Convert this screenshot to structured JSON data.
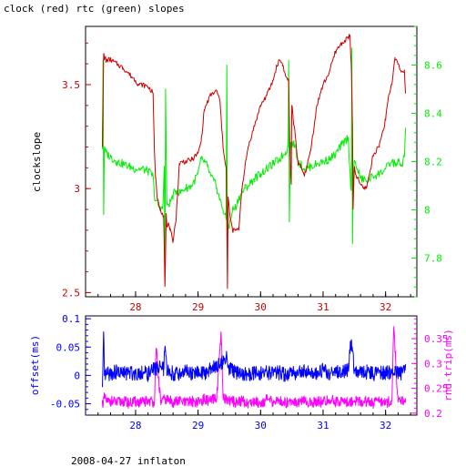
{
  "title": "clock (red) rtc (green) slopes",
  "footer": "2008-04-27 inflaton",
  "colors": {
    "clock": "#cc0000",
    "rtc": "#00ee00",
    "offset": "#0000ff",
    "rnd_trip": "#ff00ff",
    "frame": "#000000"
  },
  "chart_data": [
    {
      "type": "line",
      "title": "clock (red) rtc (green) slopes",
      "xlabel": "",
      "xlim": [
        27.2,
        32.5
      ],
      "xticks": [
        "28",
        "29",
        "30",
        "31",
        "32"
      ],
      "ylabel_left": "clockslope",
      "ylim_left": [
        2.48,
        3.78
      ],
      "yticks_left": [
        "2.5",
        "3",
        "3.5"
      ],
      "ylim_right": [
        7.64,
        8.76
      ],
      "yticks_right": [
        "7.8",
        "8",
        "8.2",
        "8.4",
        "8.6"
      ],
      "grid": false,
      "series": [
        {
          "name": "clock",
          "axis": "left",
          "color": "#cc0000",
          "x": [
            27.47,
            27.49,
            27.5,
            27.52,
            27.53,
            27.55,
            27.6,
            27.7,
            27.8,
            27.9,
            28.0,
            28.05,
            28.1,
            28.2,
            28.28,
            28.3,
            28.32,
            28.35,
            28.4,
            28.45,
            28.47,
            28.49,
            28.5,
            28.52,
            28.55,
            28.6,
            28.62,
            28.65,
            28.7,
            28.75,
            28.8,
            28.9,
            29.0,
            29.05,
            29.1,
            29.2,
            29.3,
            29.35,
            29.4,
            29.45,
            29.47,
            29.48,
            29.5,
            29.52,
            29.55,
            29.6,
            29.65,
            29.7,
            29.75,
            29.8,
            29.9,
            30.0,
            30.1,
            30.2,
            30.25,
            30.3,
            30.35,
            30.4,
            30.45,
            30.47,
            30.49,
            30.5,
            30.52,
            30.55,
            30.6,
            30.65,
            30.7,
            30.8,
            30.9,
            31.0,
            31.1,
            31.2,
            31.3,
            31.35,
            31.4,
            31.43,
            31.45,
            31.47,
            31.48,
            31.5,
            31.52,
            31.55,
            31.6,
            31.65,
            31.7,
            31.75,
            31.8,
            31.9,
            32.0,
            32.05,
            32.1,
            32.15,
            32.2,
            32.25,
            32.3,
            32.32
          ],
          "values": [
            3.21,
            3.65,
            3.62,
            3.63,
            3.61,
            3.62,
            3.62,
            3.6,
            3.58,
            3.55,
            3.52,
            3.5,
            3.5,
            3.49,
            3.46,
            3.2,
            3.05,
            2.95,
            2.9,
            2.87,
            2.53,
            2.87,
            2.82,
            2.83,
            2.8,
            2.75,
            2.8,
            2.86,
            3.12,
            3.13,
            3.13,
            3.14,
            3.17,
            3.23,
            3.38,
            3.45,
            3.47,
            3.42,
            3.2,
            3.1,
            2.52,
            2.96,
            2.9,
            2.85,
            2.8,
            2.8,
            2.8,
            3.0,
            3.1,
            3.2,
            3.3,
            3.4,
            3.45,
            3.52,
            3.58,
            3.62,
            3.6,
            3.54,
            3.52,
            3.17,
            3.02,
            3.4,
            3.34,
            3.27,
            3.12,
            3.1,
            3.06,
            3.18,
            3.4,
            3.5,
            3.56,
            3.66,
            3.7,
            3.71,
            3.73,
            3.73,
            3.6,
            3.3,
            2.9,
            3.1,
            3.07,
            3.05,
            3.02,
            3.0,
            3.01,
            3.08,
            3.16,
            3.21,
            3.33,
            3.45,
            3.5,
            3.63,
            3.6,
            3.56,
            3.57,
            3.46
          ]
        },
        {
          "name": "rtc",
          "axis": "right",
          "color": "#00ee00",
          "x": [
            27.47,
            27.48,
            27.49,
            27.5,
            27.52,
            27.55,
            27.6,
            27.7,
            27.8,
            27.9,
            28.0,
            28.1,
            28.2,
            28.28,
            28.3,
            28.33,
            28.36,
            28.4,
            28.44,
            28.46,
            28.47,
            28.48,
            28.5,
            28.55,
            28.6,
            28.65,
            28.7,
            28.75,
            28.8,
            28.9,
            29.0,
            29.05,
            29.1,
            29.15,
            29.2,
            29.25,
            29.3,
            29.35,
            29.4,
            29.45,
            29.46,
            29.47,
            29.48,
            29.5,
            29.55,
            29.6,
            29.65,
            29.7,
            29.75,
            29.8,
            29.9,
            30.0,
            30.1,
            30.2,
            30.3,
            30.4,
            30.44,
            30.45,
            30.46,
            30.48,
            30.5,
            30.55,
            30.6,
            30.7,
            30.8,
            30.9,
            31.0,
            31.1,
            31.2,
            31.3,
            31.4,
            31.45,
            31.46,
            31.47,
            31.48,
            31.5,
            31.55,
            31.6,
            31.7,
            31.8,
            31.9,
            32.0,
            32.1,
            32.15,
            32.2,
            32.25,
            32.3,
            32.32
          ],
          "values": [
            8.26,
            8.62,
            7.98,
            8.25,
            8.24,
            8.23,
            8.22,
            8.2,
            8.19,
            8.18,
            8.17,
            8.17,
            8.16,
            8.14,
            8.06,
            8.04,
            8.02,
            8.0,
            8.03,
            8.18,
            7.7,
            8.5,
            8.02,
            8.03,
            8.06,
            8.08,
            8.07,
            8.08,
            8.09,
            8.1,
            8.15,
            8.21,
            8.2,
            8.18,
            8.14,
            8.12,
            8.09,
            8.04,
            8.0,
            7.96,
            8.6,
            7.85,
            7.95,
            7.93,
            8.0,
            8.01,
            8.05,
            8.07,
            8.09,
            8.1,
            8.13,
            8.15,
            8.17,
            8.19,
            8.21,
            8.24,
            8.26,
            8.62,
            7.95,
            8.28,
            8.27,
            8.27,
            8.2,
            8.17,
            8.18,
            8.19,
            8.2,
            8.21,
            8.23,
            8.27,
            8.3,
            8.08,
            8.67,
            7.86,
            8.1,
            8.2,
            8.17,
            8.13,
            8.12,
            8.14,
            8.15,
            8.17,
            8.2,
            8.19,
            8.2,
            8.18,
            8.22,
            8.34
          ]
        }
      ]
    },
    {
      "type": "line",
      "xlabel": "",
      "xlim": [
        27.2,
        32.5
      ],
      "xticks": [
        "28",
        "29",
        "30",
        "31",
        "32"
      ],
      "ylabel_left": "offset(ms)",
      "ylim_left": [
        -0.07,
        0.105
      ],
      "yticks_left": [
        "-0.05",
        "0",
        "0.05",
        "0.1"
      ],
      "ylabel_right": "rnd-trip(ms)",
      "ylim_right": [
        0.196,
        0.396
      ],
      "yticks_right": [
        "0.2",
        "0.25",
        "0.3",
        "0.35"
      ],
      "grid": false,
      "series": [
        {
          "name": "offset",
          "axis": "left",
          "color": "#0000ff",
          "x": [
            27.47,
            27.49,
            27.5,
            27.55,
            27.6,
            27.7,
            27.8,
            27.9,
            28.0,
            28.1,
            28.2,
            28.3,
            28.4,
            28.45,
            28.47,
            28.5,
            28.55,
            28.6,
            28.7,
            28.8,
            28.9,
            29.0,
            29.1,
            29.2,
            29.3,
            29.4,
            29.45,
            29.5,
            29.6,
            29.7,
            29.8,
            29.9,
            30.0,
            30.1,
            30.2,
            30.3,
            30.4,
            30.5,
            30.6,
            30.7,
            30.8,
            30.9,
            31.0,
            31.1,
            31.2,
            31.3,
            31.4,
            31.45,
            31.5,
            31.6,
            31.7,
            31.8,
            31.9,
            32.0,
            32.1,
            32.2,
            32.3,
            32.32
          ],
          "values": [
            -0.02,
            0.075,
            0.0,
            0.002,
            0.004,
            0.006,
            0.003,
            0.005,
            0.004,
            0.006,
            0.002,
            0.012,
            0.015,
            0.01,
            0.05,
            0.008,
            0.006,
            0.004,
            0.003,
            0.008,
            0.002,
            0.005,
            0.004,
            0.012,
            0.018,
            0.025,
            0.035,
            0.012,
            0.006,
            0.004,
            0.002,
            0.004,
            0.003,
            0.006,
            0.002,
            0.005,
            0.001,
            0.006,
            0.004,
            0.009,
            0.003,
            0.005,
            0.01,
            0.004,
            0.006,
            0.004,
            0.011,
            0.062,
            0.01,
            0.004,
            0.006,
            0.003,
            0.005,
            0.004,
            0.006,
            0.004,
            0.005,
            0.02
          ]
        },
        {
          "name": "rnd-trip",
          "axis": "right",
          "color": "#ff00ff",
          "x": [
            27.47,
            27.5,
            27.55,
            27.6,
            27.7,
            27.8,
            27.9,
            28.0,
            28.1,
            28.2,
            28.3,
            28.33,
            28.4,
            28.5,
            28.6,
            28.7,
            28.8,
            28.9,
            29.0,
            29.1,
            29.2,
            29.3,
            29.37,
            29.4,
            29.5,
            29.6,
            29.7,
            29.8,
            29.9,
            30.0,
            30.1,
            30.2,
            30.3,
            30.4,
            30.5,
            30.6,
            30.7,
            30.8,
            30.9,
            31.0,
            31.1,
            31.2,
            31.3,
            31.4,
            31.5,
            31.6,
            31.7,
            31.8,
            31.9,
            32.0,
            32.1,
            32.13,
            32.2,
            32.3,
            32.32
          ],
          "values": [
            0.22,
            0.23,
            0.222,
            0.225,
            0.221,
            0.224,
            0.22,
            0.223,
            0.221,
            0.226,
            0.222,
            0.33,
            0.224,
            0.228,
            0.222,
            0.225,
            0.22,
            0.224,
            0.222,
            0.228,
            0.224,
            0.232,
            0.36,
            0.23,
            0.226,
            0.222,
            0.225,
            0.22,
            0.224,
            0.221,
            0.227,
            0.222,
            0.225,
            0.221,
            0.226,
            0.222,
            0.224,
            0.22,
            0.225,
            0.222,
            0.227,
            0.223,
            0.225,
            0.221,
            0.226,
            0.222,
            0.224,
            0.22,
            0.225,
            0.221,
            0.224,
            0.37,
            0.222,
            0.225,
            0.23
          ]
        }
      ]
    }
  ]
}
